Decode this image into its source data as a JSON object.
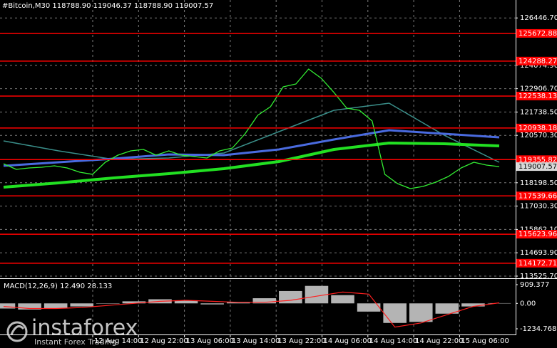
{
  "chart_data": [
    {
      "type": "line",
      "title": "#Bitcoin,M30  118788.90 119046.37 118788.90 119007.57",
      "ylim": [
        113454.5,
        127344.7
      ],
      "yticks": [
        {
          "value": 126446.7,
          "label": "126446.70"
        },
        {
          "value": 124074.9,
          "label": "124074.90"
        },
        {
          "value": 122906.7,
          "label": "122906.70"
        },
        {
          "value": 121738.5,
          "label": "121738.50"
        },
        {
          "value": 120570.3,
          "label": "120570.30"
        },
        {
          "value": 118198.5,
          "label": "118198.50"
        },
        {
          "value": 117030.3,
          "label": "117030.30"
        },
        {
          "value": 115862.1,
          "label": "115862.10"
        },
        {
          "value": 114693.9,
          "label": "114693.90"
        },
        {
          "value": 113525.7,
          "label": "113525.70"
        }
      ],
      "levels": [
        125672.88,
        124288.27,
        122538.13,
        120938.18,
        119355.82,
        117539.66,
        115623.96,
        114172.71
      ],
      "level_color": "#ff0000",
      "current_price": 119007.57,
      "xticks": [
        "12 Aug 14:00",
        "12 Aug 22:00",
        "13 Aug 06:00",
        "13 Aug 14:00",
        "13 Aug 22:00",
        "14 Aug 06:00",
        "14 Aug 14:00",
        "14 Aug 22:00",
        "15 Aug 06:00"
      ],
      "grid": true,
      "series": [
        {
          "color": "#3a8f8a",
          "width": 1.5,
          "values": [
            120293,
            119794,
            119366,
            119438,
            119687,
            120756,
            121824,
            122181,
            120578,
            119224
          ]
        },
        {
          "color": "#22e022",
          "width": 4,
          "values": [
            117977,
            118191,
            118441,
            118654,
            118904,
            119260,
            119866,
            120186,
            120150,
            120043
          ]
        },
        {
          "color": "#4a6be0",
          "width": 3,
          "values": [
            119046,
            119224,
            119402,
            119616,
            119580,
            119866,
            120364,
            120827,
            120649,
            120471
          ]
        },
        {
          "color": "#33ee33",
          "width": 1.3,
          "values": [
            119150,
            118868,
            118940,
            118975,
            119046,
            118940,
            118726,
            118619,
            119224,
            119580,
            119794,
            119866,
            119580,
            119794,
            119580,
            119509,
            119438,
            119794,
            119937,
            120649,
            121574,
            122002,
            122999,
            123142,
            123890,
            123427,
            122715,
            121930,
            121824,
            121290,
            118619,
            118156,
            117906,
            118013,
            118227,
            118512,
            118940,
            119224,
            119082,
            119007.57
          ]
        }
      ]
    },
    {
      "type": "macd",
      "title": "MACD(12,26,9) 12.490 28.133",
      "ylim": [
        -1511,
        1151
      ],
      "yticks": [
        909.377,
        {
          "value": 0,
          "label": "0.00"
        },
        -1234.768
      ],
      "series": [
        {
          "style": "histogram",
          "color": "#b4b4b4",
          "values": [
            -250,
            -300,
            -250,
            -150,
            0,
            100,
            200,
            150,
            -50,
            50,
            250,
            600,
            850,
            400,
            -400,
            -950,
            -900,
            -500,
            -150,
            12.49
          ]
        },
        {
          "style": "line",
          "color": "#ff2020",
          "values": [
            -150,
            -250,
            -250,
            -200,
            -100,
            0,
            100,
            150,
            100,
            50,
            50,
            150,
            350,
            550,
            450,
            -1150,
            -950,
            -550,
            -150,
            28.133
          ]
        }
      ]
    }
  ],
  "watermark": {
    "brand": "instaforex",
    "tagline": "Instant Forex Trading"
  }
}
